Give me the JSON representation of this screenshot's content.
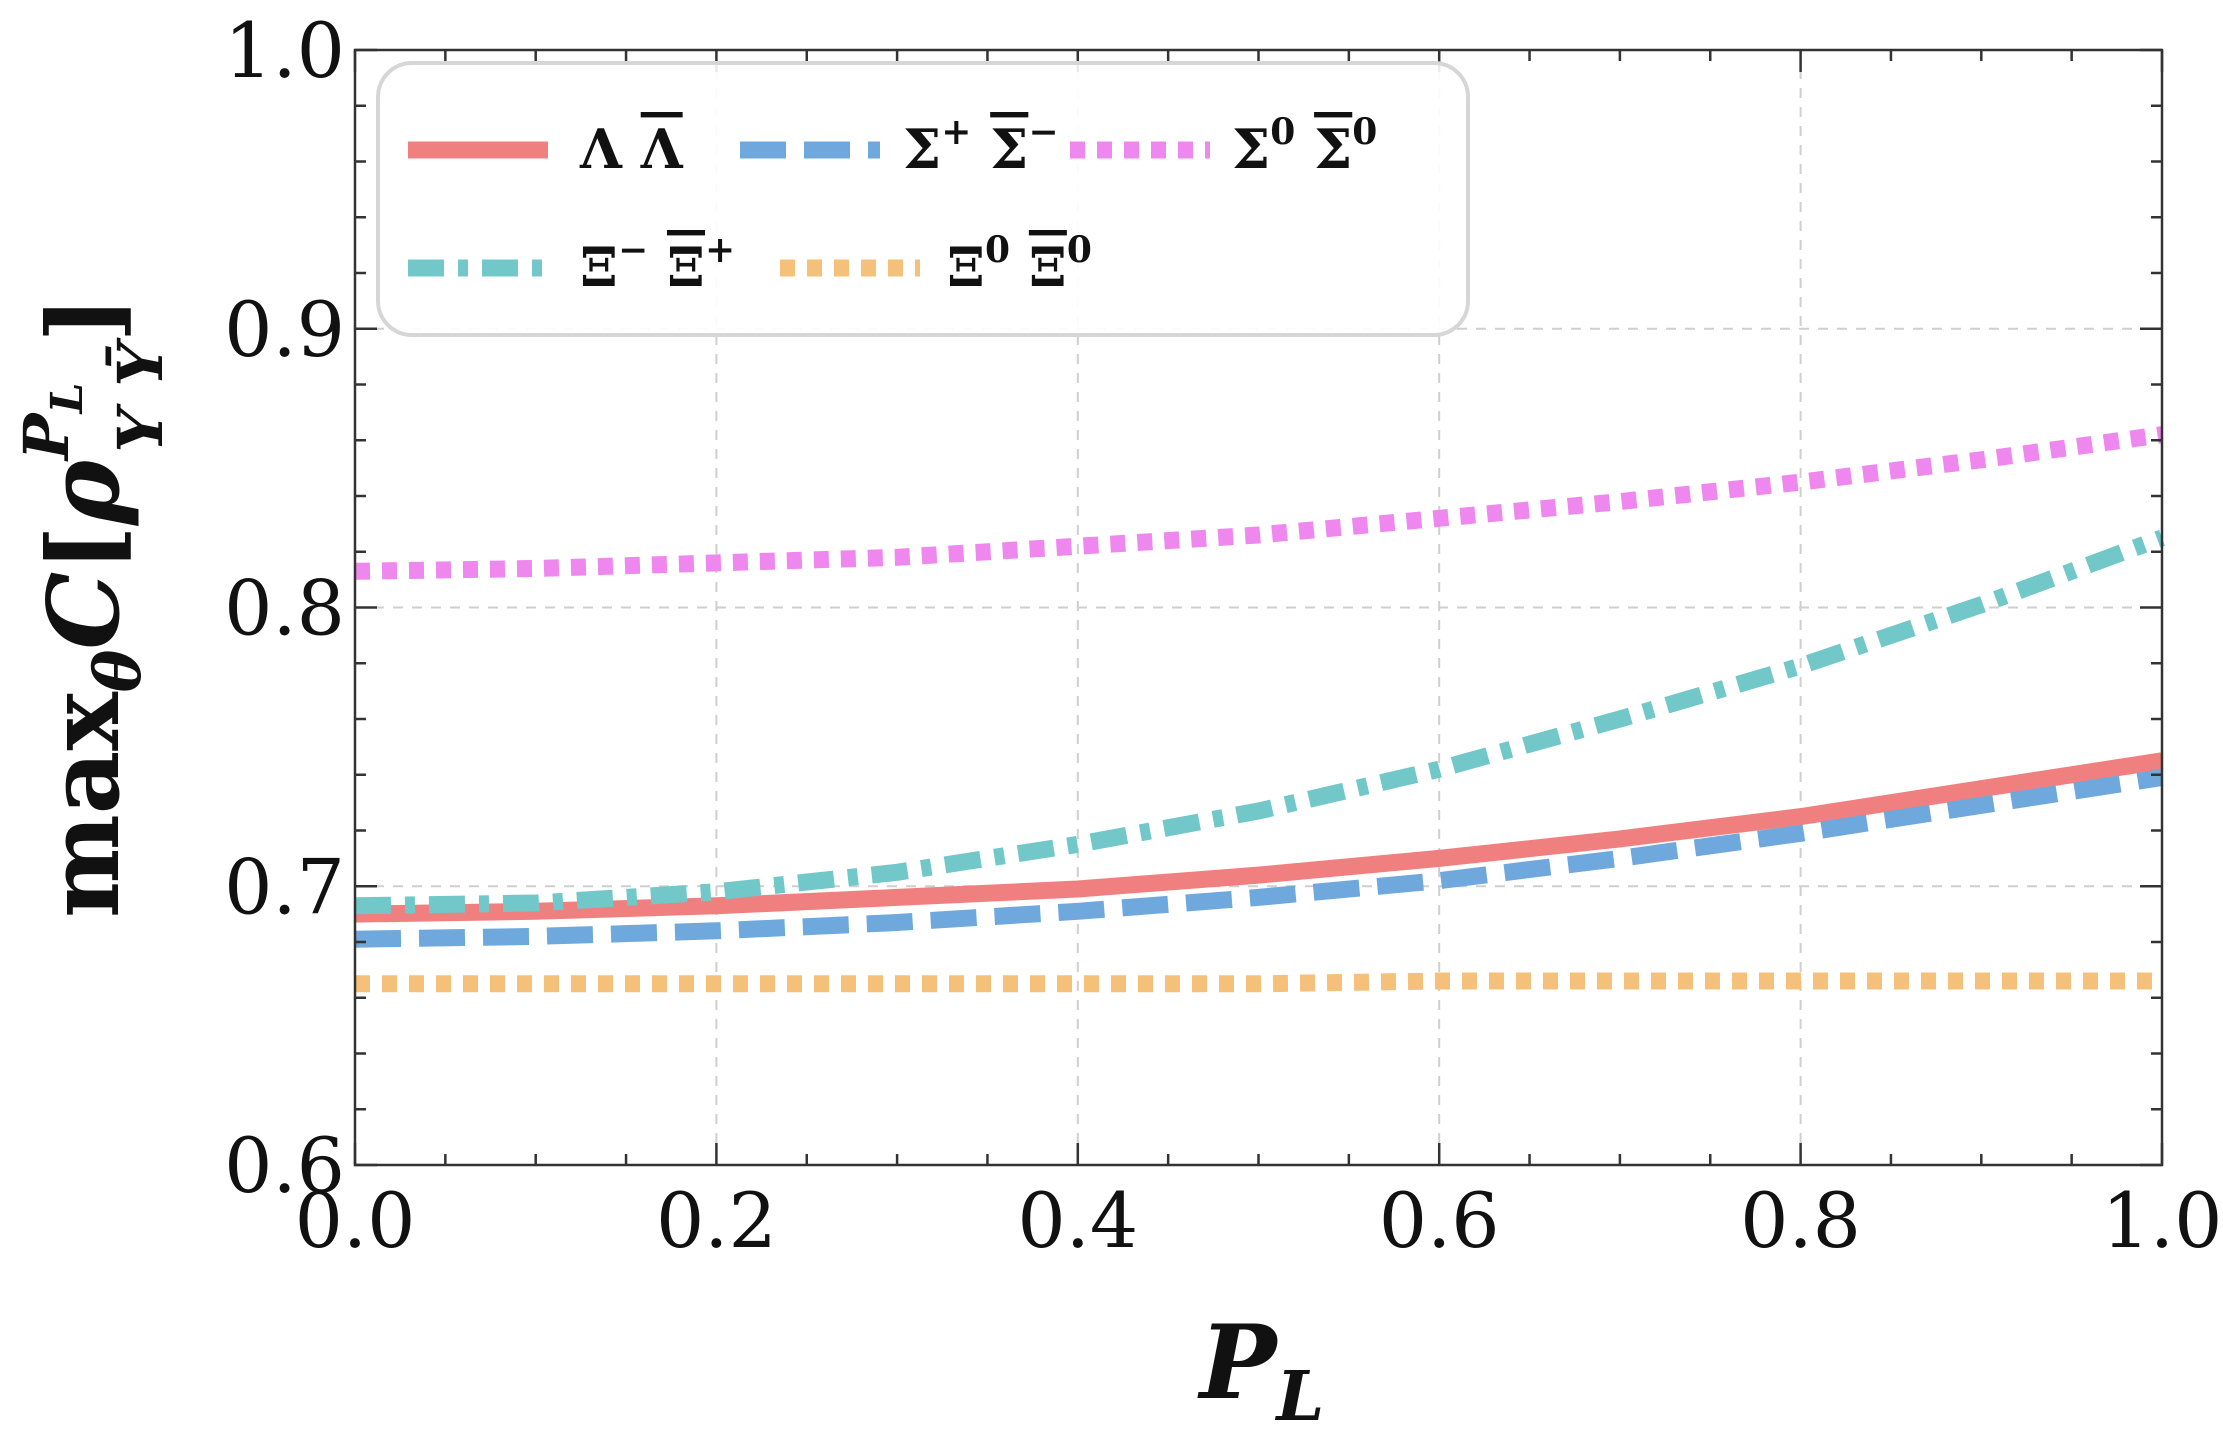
{
  "chart_data": {
    "type": "line",
    "title": "",
    "xlabel": "P_L",
    "ylabel": "max_θ C[ρ^{P_L}_{Y Ȳ}]",
    "xlim": [
      0.0,
      1.0
    ],
    "ylim": [
      0.6,
      1.0
    ],
    "xticks": [
      0.0,
      0.2,
      0.4,
      0.6,
      0.8,
      1.0
    ],
    "yticks": [
      0.6,
      0.7,
      0.8,
      0.9,
      1.0
    ],
    "x_tick_labels": [
      "0.0",
      "0.2",
      "0.4",
      "0.6",
      "0.8",
      "1.0"
    ],
    "y_tick_labels": [
      "0.6",
      "0.7",
      "0.8",
      "0.9",
      "1.0"
    ],
    "grid": true,
    "legend_position": "top-left",
    "x": [
      0.0,
      0.1,
      0.2,
      0.3,
      0.4,
      0.5,
      0.6,
      0.7,
      0.8,
      0.9,
      1.0
    ],
    "series": [
      {
        "name": "Λ Λ̄",
        "base": "Λ",
        "bar_base": "Λ",
        "sup": "",
        "bar_sup": "",
        "color": "#f08080",
        "dash": "solid",
        "values": [
          0.69,
          0.691,
          0.693,
          0.696,
          0.699,
          0.704,
          0.71,
          0.717,
          0.725,
          0.735,
          0.745
        ]
      },
      {
        "name": "Σ⁺Σ̄⁻",
        "base": "Σ",
        "bar_base": "Σ",
        "sup": "+",
        "bar_sup": "−",
        "color": "#6fa8dc",
        "dash": "dashed",
        "values": [
          0.681,
          0.682,
          0.684,
          0.687,
          0.691,
          0.696,
          0.702,
          0.71,
          0.719,
          0.729,
          0.739
        ]
      },
      {
        "name": "Σ⁰Σ̄⁰",
        "base": "Σ",
        "bar_base": "Σ",
        "sup": "0",
        "bar_sup": "0",
        "color": "#ee88ee",
        "dash": "dotted",
        "values": [
          0.813,
          0.814,
          0.816,
          0.818,
          0.822,
          0.826,
          0.832,
          0.838,
          0.845,
          0.853,
          0.862
        ]
      },
      {
        "name": "Ξ⁻Ξ̄⁺",
        "base": "Ξ",
        "bar_base": "Ξ",
        "sup": "−",
        "bar_sup": "+",
        "color": "#72c8c8",
        "dash": "dashdot",
        "values": [
          0.693,
          0.694,
          0.698,
          0.705,
          0.715,
          0.727,
          0.742,
          0.76,
          0.779,
          0.801,
          0.825
        ]
      },
      {
        "name": "Ξ⁰Ξ̄⁰",
        "base": "Ξ",
        "bar_base": "Ξ",
        "sup": "0",
        "bar_sup": "0",
        "color": "#f5c07a",
        "dash": "dotted",
        "values": [
          0.665,
          0.665,
          0.665,
          0.665,
          0.665,
          0.665,
          0.666,
          0.666,
          0.666,
          0.666,
          0.666
        ]
      }
    ]
  }
}
